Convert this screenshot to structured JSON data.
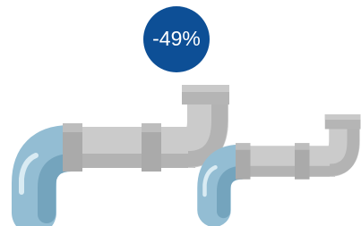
{
  "badge": {
    "label": "-49%"
  }
}
